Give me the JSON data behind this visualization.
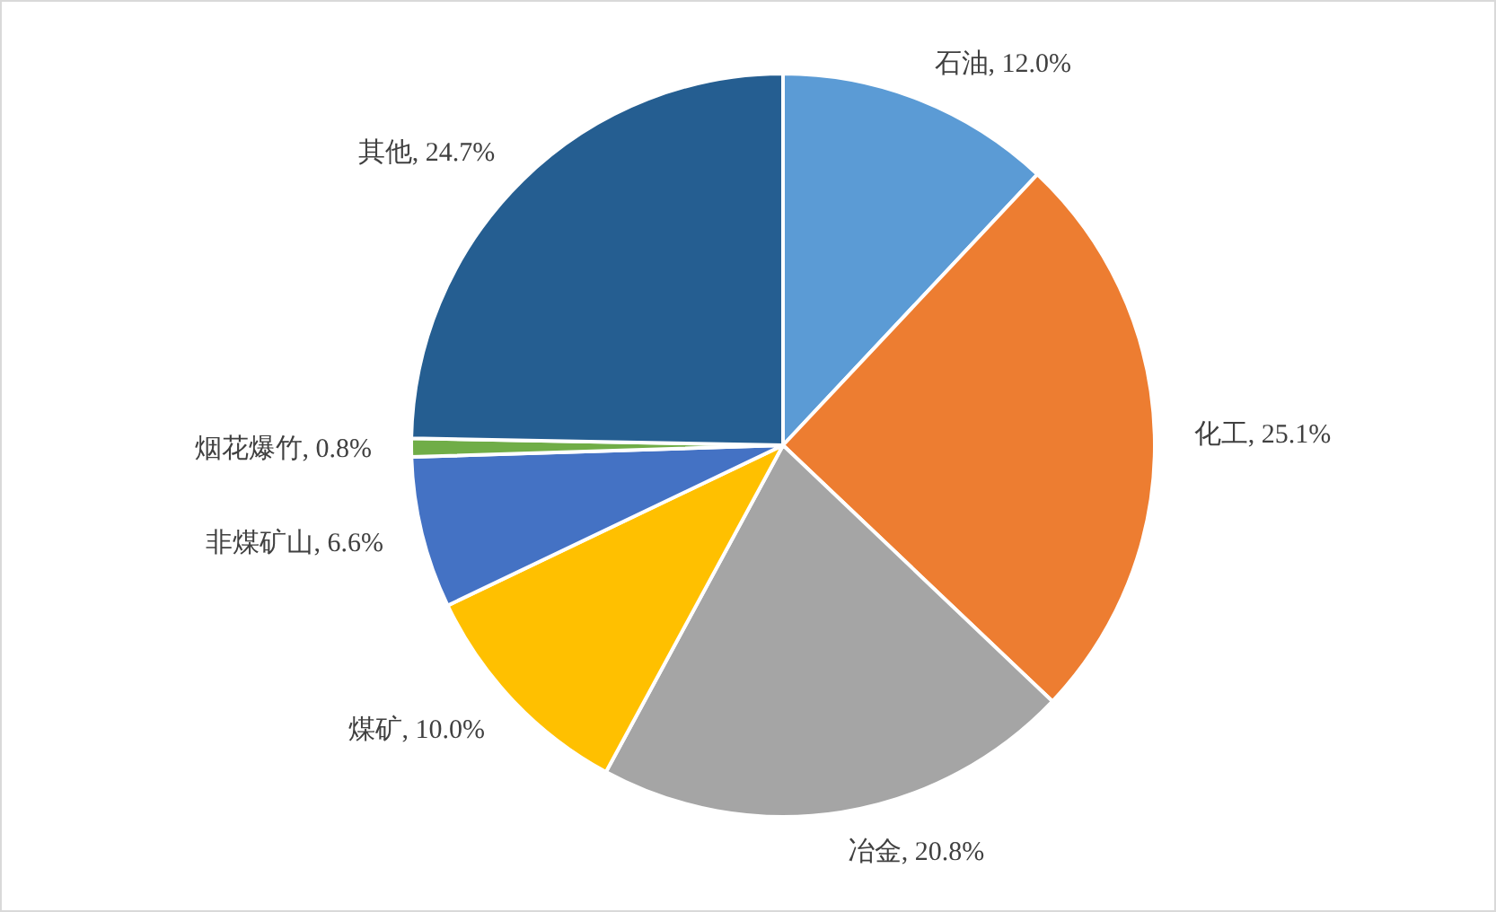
{
  "chart_data": {
    "type": "pie",
    "categories": [
      "石油",
      "化工",
      "冶金",
      "煤矿",
      "非煤矿山",
      "烟花爆竹",
      "其他"
    ],
    "values": [
      12.0,
      25.1,
      20.8,
      10.0,
      6.6,
      0.8,
      24.7
    ],
    "value_labels": [
      ", 12.0%",
      ", 25.1%",
      ", 20.8%",
      ", 10.0%",
      ", 6.6%",
      ", 0.8%",
      ", 24.7%"
    ],
    "colors": [
      "#5b9bd5",
      "#ed7d31",
      "#a5a5a5",
      "#ffc000",
      "#4472c4",
      "#70ad47",
      "#255e91"
    ]
  }
}
